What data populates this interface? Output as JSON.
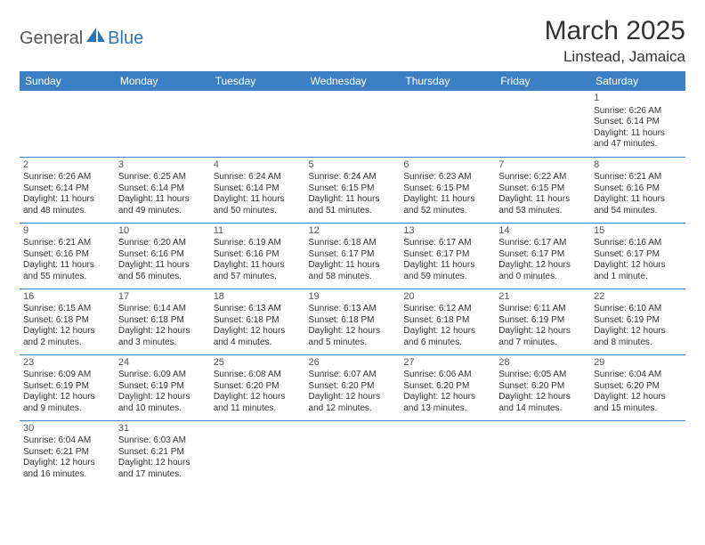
{
  "logo": {
    "text1": "General",
    "text2": "Blue"
  },
  "title": "March 2025",
  "location": "Linstead, Jamaica",
  "colors": {
    "header_bg": "#3a80c3",
    "header_fg": "#ffffff",
    "border": "#3a80c3",
    "logo_gray": "#575757",
    "logo_blue": "#2b74b8",
    "text": "#333333"
  },
  "day_headers": [
    "Sunday",
    "Monday",
    "Tuesday",
    "Wednesday",
    "Thursday",
    "Friday",
    "Saturday"
  ],
  "weeks": [
    [
      null,
      null,
      null,
      null,
      null,
      null,
      {
        "n": "1",
        "rise": "Sunrise: 6:26 AM",
        "set": "Sunset: 6:14 PM",
        "dl": "Daylight: 11 hours and 47 minutes."
      }
    ],
    [
      {
        "n": "2",
        "rise": "Sunrise: 6:26 AM",
        "set": "Sunset: 6:14 PM",
        "dl": "Daylight: 11 hours and 48 minutes."
      },
      {
        "n": "3",
        "rise": "Sunrise: 6:25 AM",
        "set": "Sunset: 6:14 PM",
        "dl": "Daylight: 11 hours and 49 minutes."
      },
      {
        "n": "4",
        "rise": "Sunrise: 6:24 AM",
        "set": "Sunset: 6:14 PM",
        "dl": "Daylight: 11 hours and 50 minutes."
      },
      {
        "n": "5",
        "rise": "Sunrise: 6:24 AM",
        "set": "Sunset: 6:15 PM",
        "dl": "Daylight: 11 hours and 51 minutes."
      },
      {
        "n": "6",
        "rise": "Sunrise: 6:23 AM",
        "set": "Sunset: 6:15 PM",
        "dl": "Daylight: 11 hours and 52 minutes."
      },
      {
        "n": "7",
        "rise": "Sunrise: 6:22 AM",
        "set": "Sunset: 6:15 PM",
        "dl": "Daylight: 11 hours and 53 minutes."
      },
      {
        "n": "8",
        "rise": "Sunrise: 6:21 AM",
        "set": "Sunset: 6:16 PM",
        "dl": "Daylight: 11 hours and 54 minutes."
      }
    ],
    [
      {
        "n": "9",
        "rise": "Sunrise: 6:21 AM",
        "set": "Sunset: 6:16 PM",
        "dl": "Daylight: 11 hours and 55 minutes."
      },
      {
        "n": "10",
        "rise": "Sunrise: 6:20 AM",
        "set": "Sunset: 6:16 PM",
        "dl": "Daylight: 11 hours and 56 minutes."
      },
      {
        "n": "11",
        "rise": "Sunrise: 6:19 AM",
        "set": "Sunset: 6:16 PM",
        "dl": "Daylight: 11 hours and 57 minutes."
      },
      {
        "n": "12",
        "rise": "Sunrise: 6:18 AM",
        "set": "Sunset: 6:17 PM",
        "dl": "Daylight: 11 hours and 58 minutes."
      },
      {
        "n": "13",
        "rise": "Sunrise: 6:17 AM",
        "set": "Sunset: 6:17 PM",
        "dl": "Daylight: 11 hours and 59 minutes."
      },
      {
        "n": "14",
        "rise": "Sunrise: 6:17 AM",
        "set": "Sunset: 6:17 PM",
        "dl": "Daylight: 12 hours and 0 minutes."
      },
      {
        "n": "15",
        "rise": "Sunrise: 6:16 AM",
        "set": "Sunset: 6:17 PM",
        "dl": "Daylight: 12 hours and 1 minute."
      }
    ],
    [
      {
        "n": "16",
        "rise": "Sunrise: 6:15 AM",
        "set": "Sunset: 6:18 PM",
        "dl": "Daylight: 12 hours and 2 minutes."
      },
      {
        "n": "17",
        "rise": "Sunrise: 6:14 AM",
        "set": "Sunset: 6:18 PM",
        "dl": "Daylight: 12 hours and 3 minutes."
      },
      {
        "n": "18",
        "rise": "Sunrise: 6:13 AM",
        "set": "Sunset: 6:18 PM",
        "dl": "Daylight: 12 hours and 4 minutes."
      },
      {
        "n": "19",
        "rise": "Sunrise: 6:13 AM",
        "set": "Sunset: 6:18 PM",
        "dl": "Daylight: 12 hours and 5 minutes."
      },
      {
        "n": "20",
        "rise": "Sunrise: 6:12 AM",
        "set": "Sunset: 6:18 PM",
        "dl": "Daylight: 12 hours and 6 minutes."
      },
      {
        "n": "21",
        "rise": "Sunrise: 6:11 AM",
        "set": "Sunset: 6:19 PM",
        "dl": "Daylight: 12 hours and 7 minutes."
      },
      {
        "n": "22",
        "rise": "Sunrise: 6:10 AM",
        "set": "Sunset: 6:19 PM",
        "dl": "Daylight: 12 hours and 8 minutes."
      }
    ],
    [
      {
        "n": "23",
        "rise": "Sunrise: 6:09 AM",
        "set": "Sunset: 6:19 PM",
        "dl": "Daylight: 12 hours and 9 minutes."
      },
      {
        "n": "24",
        "rise": "Sunrise: 6:09 AM",
        "set": "Sunset: 6:19 PM",
        "dl": "Daylight: 12 hours and 10 minutes."
      },
      {
        "n": "25",
        "rise": "Sunrise: 6:08 AM",
        "set": "Sunset: 6:20 PM",
        "dl": "Daylight: 12 hours and 11 minutes."
      },
      {
        "n": "26",
        "rise": "Sunrise: 6:07 AM",
        "set": "Sunset: 6:20 PM",
        "dl": "Daylight: 12 hours and 12 minutes."
      },
      {
        "n": "27",
        "rise": "Sunrise: 6:06 AM",
        "set": "Sunset: 6:20 PM",
        "dl": "Daylight: 12 hours and 13 minutes."
      },
      {
        "n": "28",
        "rise": "Sunrise: 6:05 AM",
        "set": "Sunset: 6:20 PM",
        "dl": "Daylight: 12 hours and 14 minutes."
      },
      {
        "n": "29",
        "rise": "Sunrise: 6:04 AM",
        "set": "Sunset: 6:20 PM",
        "dl": "Daylight: 12 hours and 15 minutes."
      }
    ],
    [
      {
        "n": "30",
        "rise": "Sunrise: 6:04 AM",
        "set": "Sunset: 6:21 PM",
        "dl": "Daylight: 12 hours and 16 minutes."
      },
      {
        "n": "31",
        "rise": "Sunrise: 6:03 AM",
        "set": "Sunset: 6:21 PM",
        "dl": "Daylight: 12 hours and 17 minutes."
      },
      null,
      null,
      null,
      null,
      null
    ]
  ]
}
